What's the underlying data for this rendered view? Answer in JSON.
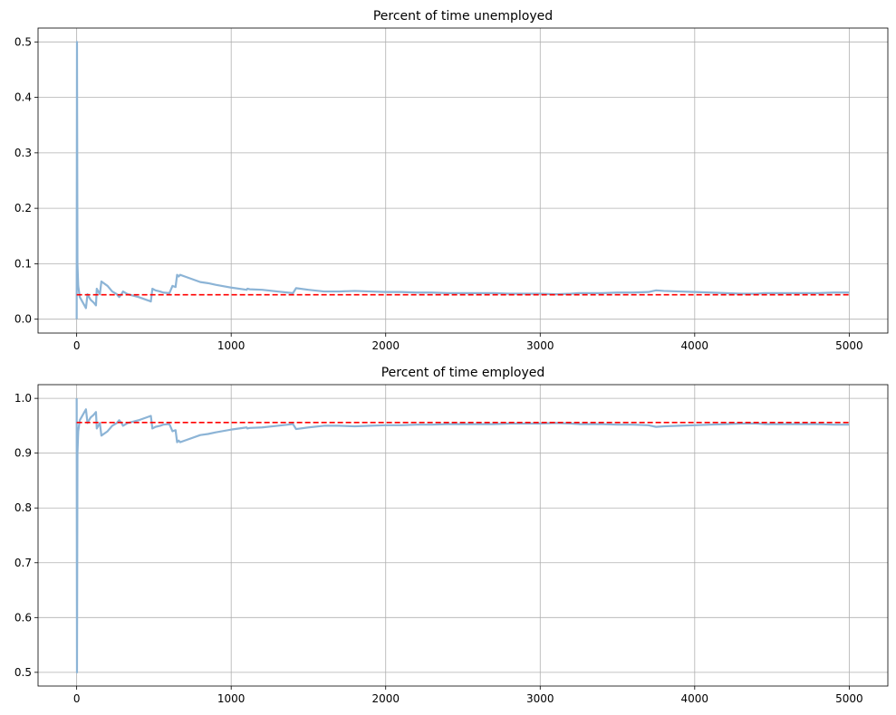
{
  "chart_data": [
    {
      "type": "line",
      "title": "Percent of time unemployed",
      "xlabel": "",
      "ylabel": "",
      "xlim": [
        -250,
        5250
      ],
      "ylim": [
        -0.025,
        0.525
      ],
      "x_ticks": [
        0,
        1000,
        2000,
        3000,
        4000,
        5000
      ],
      "y_ticks": [
        0.0,
        0.1,
        0.2,
        0.3,
        0.4,
        0.5
      ],
      "y_tick_format": 1,
      "grid": true,
      "series": [
        {
          "kind": "solid",
          "color": "#8cb4d6",
          "x": [
            0,
            2,
            5,
            10,
            20,
            40,
            60,
            70,
            90,
            110,
            125,
            130,
            140,
            150,
            160,
            200,
            230,
            260,
            275,
            290,
            300,
            330,
            400,
            470,
            480,
            490,
            510,
            540,
            560,
            600,
            620,
            640,
            650,
            660,
            670,
            700,
            800,
            850,
            900,
            1000,
            1100,
            1105,
            1120,
            1200,
            1300,
            1400,
            1420,
            1500,
            1600,
            1700,
            1800,
            1900,
            2000,
            2100,
            2200,
            2300,
            2400,
            2500,
            2600,
            2700,
            2800,
            2900,
            3000,
            3100,
            3200,
            3250,
            3300,
            3400,
            3500,
            3600,
            3700,
            3750,
            3800,
            3900,
            4000,
            4100,
            4200,
            4300,
            4400,
            4450,
            4500,
            4600,
            4700,
            4800,
            4900,
            5000
          ],
          "values": [
            0.0,
            0.5,
            0.1,
            0.06,
            0.04,
            0.03,
            0.02,
            0.045,
            0.035,
            0.03,
            0.025,
            0.055,
            0.05,
            0.045,
            0.068,
            0.06,
            0.05,
            0.045,
            0.04,
            0.045,
            0.05,
            0.045,
            0.04,
            0.033,
            0.032,
            0.055,
            0.052,
            0.05,
            0.048,
            0.047,
            0.06,
            0.058,
            0.08,
            0.077,
            0.08,
            0.077,
            0.067,
            0.065,
            0.062,
            0.057,
            0.053,
            0.055,
            0.054,
            0.053,
            0.05,
            0.047,
            0.056,
            0.053,
            0.05,
            0.05,
            0.051,
            0.05,
            0.049,
            0.049,
            0.048,
            0.048,
            0.047,
            0.047,
            0.047,
            0.047,
            0.046,
            0.046,
            0.046,
            0.045,
            0.046,
            0.047,
            0.047,
            0.047,
            0.048,
            0.048,
            0.049,
            0.052,
            0.051,
            0.05,
            0.049,
            0.048,
            0.047,
            0.046,
            0.046,
            0.047,
            0.047,
            0.047,
            0.047,
            0.047,
            0.048,
            0.048
          ]
        },
        {
          "kind": "dashed",
          "color": "#ff0000",
          "x": [
            0,
            5000
          ],
          "values": [
            0.044,
            0.044
          ]
        }
      ]
    },
    {
      "type": "line",
      "title": "Percent of time employed",
      "xlabel": "",
      "ylabel": "",
      "xlim": [
        -250,
        5250
      ],
      "ylim": [
        0.475,
        1.025
      ],
      "x_ticks": [
        0,
        1000,
        2000,
        3000,
        4000,
        5000
      ],
      "y_ticks": [
        0.5,
        0.6,
        0.7,
        0.8,
        0.9,
        1.0
      ],
      "y_tick_format": 1,
      "grid": true,
      "series": [
        {
          "kind": "solid",
          "color": "#8cb4d6",
          "x": [
            0,
            2,
            5,
            10,
            20,
            40,
            60,
            70,
            90,
            110,
            125,
            130,
            140,
            150,
            160,
            200,
            230,
            260,
            275,
            290,
            300,
            330,
            400,
            470,
            480,
            490,
            510,
            540,
            560,
            600,
            620,
            640,
            650,
            660,
            670,
            700,
            800,
            850,
            900,
            1000,
            1100,
            1105,
            1120,
            1200,
            1300,
            1400,
            1420,
            1500,
            1600,
            1700,
            1800,
            1900,
            2000,
            2100,
            2200,
            2300,
            2400,
            2500,
            2600,
            2700,
            2800,
            2900,
            3000,
            3100,
            3200,
            3250,
            3300,
            3400,
            3500,
            3600,
            3700,
            3750,
            3800,
            3900,
            4000,
            4100,
            4200,
            4300,
            4400,
            4450,
            4500,
            4600,
            4700,
            4800,
            4900,
            5000
          ],
          "values": [
            1.0,
            0.5,
            0.9,
            0.94,
            0.96,
            0.97,
            0.98,
            0.955,
            0.965,
            0.97,
            0.975,
            0.945,
            0.95,
            0.955,
            0.932,
            0.94,
            0.95,
            0.955,
            0.96,
            0.955,
            0.95,
            0.955,
            0.96,
            0.967,
            0.968,
            0.945,
            0.948,
            0.95,
            0.952,
            0.953,
            0.94,
            0.942,
            0.92,
            0.923,
            0.92,
            0.923,
            0.933,
            0.935,
            0.938,
            0.943,
            0.947,
            0.945,
            0.946,
            0.947,
            0.95,
            0.953,
            0.944,
            0.947,
            0.95,
            0.95,
            0.949,
            0.95,
            0.951,
            0.951,
            0.952,
            0.952,
            0.953,
            0.953,
            0.953,
            0.953,
            0.954,
            0.954,
            0.954,
            0.955,
            0.954,
            0.953,
            0.953,
            0.953,
            0.952,
            0.952,
            0.951,
            0.948,
            0.949,
            0.95,
            0.951,
            0.952,
            0.953,
            0.954,
            0.954,
            0.953,
            0.953,
            0.953,
            0.953,
            0.953,
            0.952,
            0.952
          ]
        },
        {
          "kind": "dashed",
          "color": "#ff0000",
          "x": [
            0,
            5000
          ],
          "values": [
            0.956,
            0.956
          ]
        }
      ]
    }
  ]
}
